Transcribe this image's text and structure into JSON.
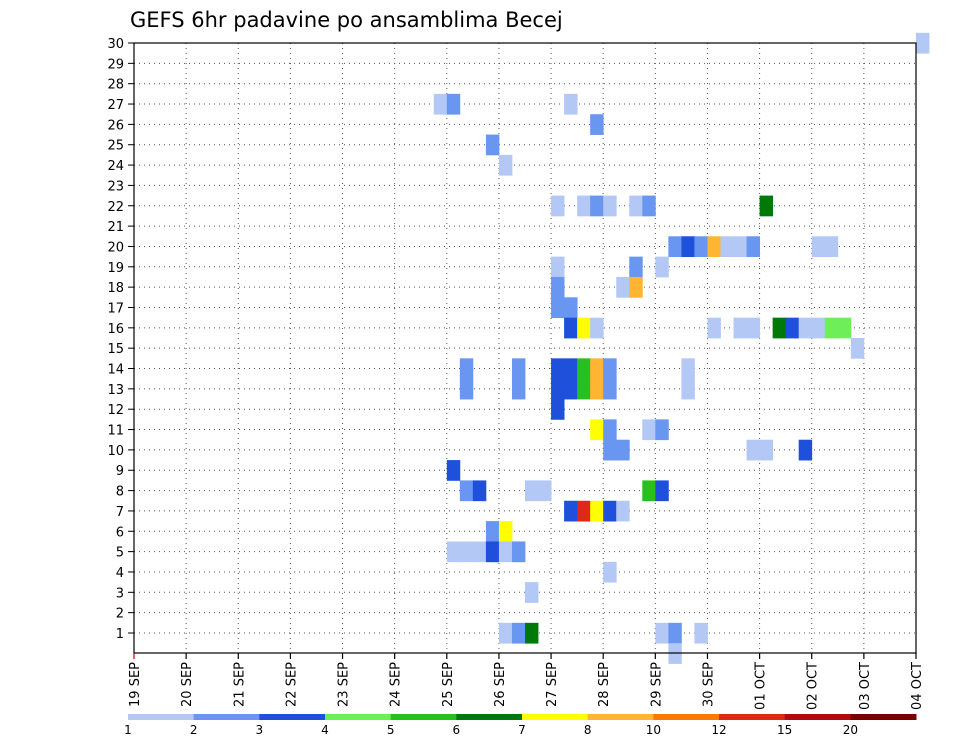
{
  "chart_data": {
    "type": "heatmap",
    "title": "GEFS 6hr padavine po ansamblima Becej",
    "x_start_day": 19,
    "steps_per_day": 4,
    "x_ticks": [
      "19 SEP",
      "20 SEP",
      "21 SEP",
      "22 SEP",
      "23 SEP",
      "24 SEP",
      "25 SEP",
      "26 SEP",
      "27 SEP",
      "28 SEP",
      "29 SEP",
      "30 SEP",
      "01 OCT",
      "02 OCT",
      "03 OCT",
      "04 OCT"
    ],
    "y_ticks": [
      "1",
      "2",
      "3",
      "4",
      "5",
      "6",
      "7",
      "8",
      "9",
      "10",
      "11",
      "12",
      "13",
      "14",
      "15",
      "16",
      "17",
      "18",
      "19",
      "20",
      "21",
      "22",
      "23",
      "24",
      "25",
      "26",
      "27",
      "28",
      "29",
      "30"
    ],
    "ylim": [
      1,
      30
    ],
    "grid": true,
    "colorbar": {
      "colors": [
        "#b4c8f6",
        "#6896f0",
        "#1e50dc",
        "#6eee58",
        "#28c01e",
        "#00780a",
        "#ffff00",
        "#ffb432",
        "#ff7800",
        "#e12814",
        "#b40a0a",
        "#780000"
      ],
      "labels": [
        "1",
        "2",
        "3",
        "4",
        "5",
        "6",
        "7",
        "8",
        "10",
        "12",
        "15",
        "20"
      ]
    },
    "cells": [
      {
        "m": 30,
        "t": 60,
        "c": 1
      },
      {
        "m": 27,
        "t": 23,
        "c": 1
      },
      {
        "m": 27,
        "t": 24,
        "c": 2
      },
      {
        "m": 27,
        "t": 33,
        "c": 1
      },
      {
        "m": 26,
        "t": 35,
        "c": 2
      },
      {
        "m": 25,
        "t": 27,
        "c": 2
      },
      {
        "m": 24,
        "t": 28,
        "c": 1
      },
      {
        "m": 22,
        "t": 32,
        "c": 1
      },
      {
        "m": 22,
        "t": 34,
        "c": 1
      },
      {
        "m": 22,
        "t": 35,
        "c": 2
      },
      {
        "m": 22,
        "t": 36,
        "c": 1
      },
      {
        "m": 22,
        "t": 38,
        "c": 1
      },
      {
        "m": 22,
        "t": 39,
        "c": 2
      },
      {
        "m": 22,
        "t": 48,
        "c": 6
      },
      {
        "m": 20,
        "t": 41,
        "c": 2
      },
      {
        "m": 20,
        "t": 42,
        "c": 3
      },
      {
        "m": 20,
        "t": 43,
        "c": 2
      },
      {
        "m": 20,
        "t": 44,
        "c": 8
      },
      {
        "m": 20,
        "t": 45,
        "c": 1
      },
      {
        "m": 20,
        "t": 46,
        "c": 1
      },
      {
        "m": 20,
        "t": 47,
        "c": 2
      },
      {
        "m": 20,
        "t": 52,
        "c": 1
      },
      {
        "m": 20,
        "t": 53,
        "c": 1
      },
      {
        "m": 19,
        "t": 32,
        "c": 1
      },
      {
        "m": 19,
        "t": 38,
        "c": 2
      },
      {
        "m": 19,
        "t": 40,
        "c": 1
      },
      {
        "m": 18,
        "t": 32,
        "c": 2
      },
      {
        "m": 18,
        "t": 37,
        "c": 1
      },
      {
        "m": 18,
        "t": 38,
        "c": 8
      },
      {
        "m": 17,
        "t": 32,
        "c": 2
      },
      {
        "m": 17,
        "t": 33,
        "c": 2
      },
      {
        "m": 16,
        "t": 33,
        "c": 3
      },
      {
        "m": 16,
        "t": 34,
        "c": 7
      },
      {
        "m": 16,
        "t": 35,
        "c": 1
      },
      {
        "m": 16,
        "t": 44,
        "c": 1
      },
      {
        "m": 16,
        "t": 46,
        "c": 1
      },
      {
        "m": 16,
        "t": 47,
        "c": 1
      },
      {
        "m": 16,
        "t": 49,
        "c": 6
      },
      {
        "m": 16,
        "t": 50,
        "c": 3
      },
      {
        "m": 16,
        "t": 51,
        "c": 1
      },
      {
        "m": 16,
        "t": 52,
        "c": 1
      },
      {
        "m": 16,
        "t": 53,
        "c": 4
      },
      {
        "m": 16,
        "t": 54,
        "c": 4
      },
      {
        "m": 15,
        "t": 55,
        "c": 1
      },
      {
        "m": 14,
        "t": 25,
        "c": 2
      },
      {
        "m": 14,
        "t": 29,
        "c": 2
      },
      {
        "m": 14,
        "t": 32,
        "c": 3
      },
      {
        "m": 14,
        "t": 33,
        "c": 3
      },
      {
        "m": 14,
        "t": 34,
        "c": 5
      },
      {
        "m": 14,
        "t": 35,
        "c": 8
      },
      {
        "m": 14,
        "t": 36,
        "c": 2
      },
      {
        "m": 14,
        "t": 42,
        "c": 1
      },
      {
        "m": 13,
        "t": 25,
        "c": 2
      },
      {
        "m": 13,
        "t": 29,
        "c": 2
      },
      {
        "m": 13,
        "t": 32,
        "c": 3
      },
      {
        "m": 13,
        "t": 33,
        "c": 3
      },
      {
        "m": 13,
        "t": 34,
        "c": 5
      },
      {
        "m": 13,
        "t": 35,
        "c": 8
      },
      {
        "m": 13,
        "t": 36,
        "c": 2
      },
      {
        "m": 13,
        "t": 42,
        "c": 1
      },
      {
        "m": 12,
        "t": 32,
        "c": 3
      },
      {
        "m": 11,
        "t": 35,
        "c": 7
      },
      {
        "m": 11,
        "t": 36,
        "c": 2
      },
      {
        "m": 11,
        "t": 39,
        "c": 1
      },
      {
        "m": 11,
        "t": 40,
        "c": 2
      },
      {
        "m": 10,
        "t": 36,
        "c": 2
      },
      {
        "m": 10,
        "t": 37,
        "c": 2
      },
      {
        "m": 10,
        "t": 47,
        "c": 1
      },
      {
        "m": 10,
        "t": 48,
        "c": 1
      },
      {
        "m": 10,
        "t": 51,
        "c": 3
      },
      {
        "m": 9,
        "t": 24,
        "c": 3
      },
      {
        "m": 8,
        "t": 25,
        "c": 2
      },
      {
        "m": 8,
        "t": 26,
        "c": 3
      },
      {
        "m": 8,
        "t": 30,
        "c": 1
      },
      {
        "m": 8,
        "t": 31,
        "c": 1
      },
      {
        "m": 8,
        "t": 39,
        "c": 5
      },
      {
        "m": 8,
        "t": 40,
        "c": 3
      },
      {
        "m": 7,
        "t": 33,
        "c": 3
      },
      {
        "m": 7,
        "t": 34,
        "c": 10
      },
      {
        "m": 7,
        "t": 35,
        "c": 7
      },
      {
        "m": 7,
        "t": 36,
        "c": 3
      },
      {
        "m": 7,
        "t": 37,
        "c": 1
      },
      {
        "m": 6,
        "t": 27,
        "c": 2
      },
      {
        "m": 6,
        "t": 28,
        "c": 7
      },
      {
        "m": 5,
        "t": 24,
        "c": 1
      },
      {
        "m": 5,
        "t": 25,
        "c": 1
      },
      {
        "m": 5,
        "t": 26,
        "c": 1
      },
      {
        "m": 5,
        "t": 27,
        "c": 3
      },
      {
        "m": 5,
        "t": 28,
        "c": 1
      },
      {
        "m": 5,
        "t": 29,
        "c": 2
      },
      {
        "m": 4,
        "t": 36,
        "c": 1
      },
      {
        "m": 3,
        "t": 30,
        "c": 1
      },
      {
        "m": 1,
        "t": 28,
        "c": 1
      },
      {
        "m": 1,
        "t": 29,
        "c": 2
      },
      {
        "m": 1,
        "t": 30,
        "c": 6
      },
      {
        "m": 1,
        "t": 40,
        "c": 1
      },
      {
        "m": 1,
        "t": 41,
        "c": 2
      },
      {
        "m": 1,
        "t": 43,
        "c": 1
      },
      {
        "m": 0,
        "t": 41,
        "c": 1
      }
    ]
  }
}
